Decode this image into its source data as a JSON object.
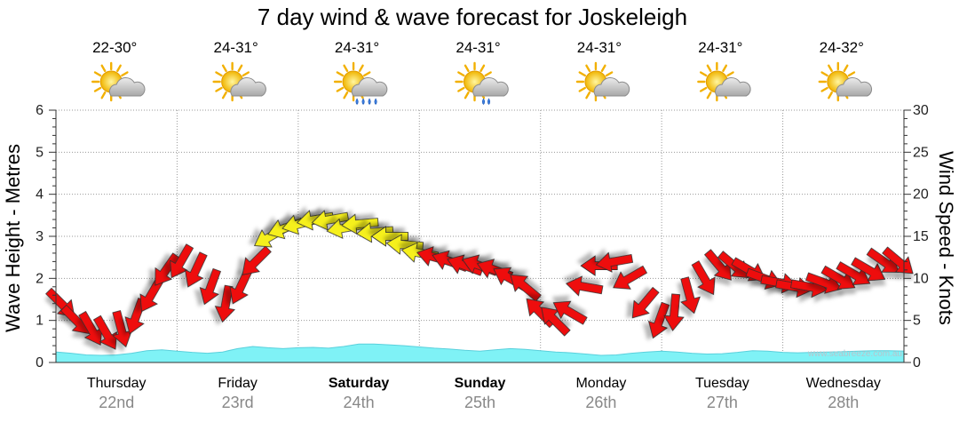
{
  "chart_data": {
    "type": "line",
    "title": "7 day wind & wave forecast for Joskeleigh",
    "ylabel_left": "Wave Height - Metres",
    "ylabel_right": "Wind Speed - Knots",
    "ylim_left": [
      0,
      6
    ],
    "ylim_right": [
      0,
      30
    ],
    "yticks_left": [
      "0",
      "1",
      "2",
      "3",
      "4",
      "5",
      "6"
    ],
    "yticks_right": [
      "0",
      "5",
      "10",
      "15",
      "20",
      "25",
      "30"
    ],
    "watermark": "www.seabreeze.com.au",
    "days": [
      {
        "name": "Thursday",
        "date": "22nd",
        "temp": "22-30°",
        "icon": "partly-cloudy-icon",
        "bold": false
      },
      {
        "name": "Friday",
        "date": "23rd",
        "temp": "24-31°",
        "icon": "partly-cloudy-icon",
        "bold": false
      },
      {
        "name": "Saturday",
        "date": "24th",
        "temp": "24-31°",
        "icon": "rain-shower-icon",
        "bold": true
      },
      {
        "name": "Sunday",
        "date": "25th",
        "temp": "24-31°",
        "icon": "light-shower-icon",
        "bold": true
      },
      {
        "name": "Monday",
        "date": "26th",
        "temp": "24-31°",
        "icon": "partly-cloudy-icon",
        "bold": false
      },
      {
        "name": "Tuesday",
        "date": "27th",
        "temp": "24-31°",
        "icon": "partly-cloudy-icon",
        "bold": false
      },
      {
        "name": "Wednesday",
        "date": "28th",
        "temp": "24-32°",
        "icon": "partly-cloudy-icon",
        "bold": false
      }
    ],
    "wave_heights_m": [
      0.25,
      0.22,
      0.18,
      0.17,
      0.18,
      0.22,
      0.28,
      0.3,
      0.27,
      0.24,
      0.22,
      0.25,
      0.33,
      0.38,
      0.35,
      0.33,
      0.35,
      0.36,
      0.34,
      0.38,
      0.44,
      0.44,
      0.42,
      0.4,
      0.37,
      0.34,
      0.32,
      0.29,
      0.27,
      0.3,
      0.33,
      0.31,
      0.28,
      0.25,
      0.23,
      0.2,
      0.17,
      0.18,
      0.22,
      0.25,
      0.27,
      0.25,
      0.22,
      0.2,
      0.21,
      0.24,
      0.28,
      0.27,
      0.24,
      0.23,
      0.24,
      0.25,
      0.26,
      0.27,
      0.28,
      0.28,
      0.27
    ],
    "wind_knots": [
      7,
      5,
      4,
      3.5,
      4,
      5.5,
      8,
      11,
      12,
      11,
      9,
      7,
      9,
      12,
      15,
      16,
      16.5,
      17,
      17,
      16,
      16.5,
      15.5,
      15,
      14,
      13,
      12.5,
      12,
      11.5,
      11.5,
      11,
      10,
      9,
      6,
      5,
      6,
      9,
      11.5,
      12,
      10,
      7,
      5,
      6,
      8,
      10,
      11.5,
      11.5,
      11,
      10,
      9.5,
      9,
      9,
      9.5,
      10,
      10.5,
      11,
      12,
      12
    ],
    "wind_dirs_deg": [
      315,
      315,
      330,
      330,
      345,
      20,
      30,
      35,
      30,
      25,
      20,
      10,
      25,
      45,
      60,
      70,
      75,
      80,
      80,
      80,
      85,
      85,
      90,
      95,
      100,
      105,
      110,
      110,
      110,
      110,
      120,
      130,
      135,
      135,
      120,
      100,
      90,
      80,
      60,
      40,
      20,
      5,
      345,
      330,
      320,
      310,
      300,
      290,
      280,
      280,
      280,
      290,
      300,
      300,
      300,
      305,
      310
    ]
  }
}
